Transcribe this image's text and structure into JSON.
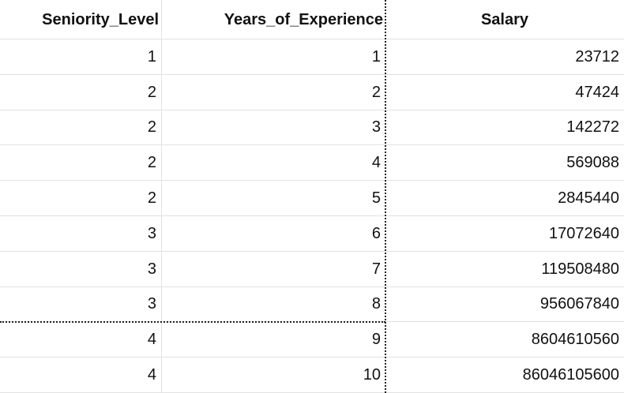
{
  "table": {
    "header": [
      "Seniority_Level",
      "Years_of_Experience",
      "Salary"
    ],
    "rows": [
      [
        1,
        1,
        23712
      ],
      [
        2,
        2,
        47424
      ],
      [
        2,
        3,
        142272
      ],
      [
        2,
        4,
        569088
      ],
      [
        2,
        5,
        2845440
      ],
      [
        3,
        6,
        17072640
      ],
      [
        3,
        7,
        119508480
      ],
      [
        3,
        8,
        956067840
      ],
      [
        4,
        9,
        8604610560
      ],
      [
        4,
        10,
        86046105600
      ]
    ]
  }
}
